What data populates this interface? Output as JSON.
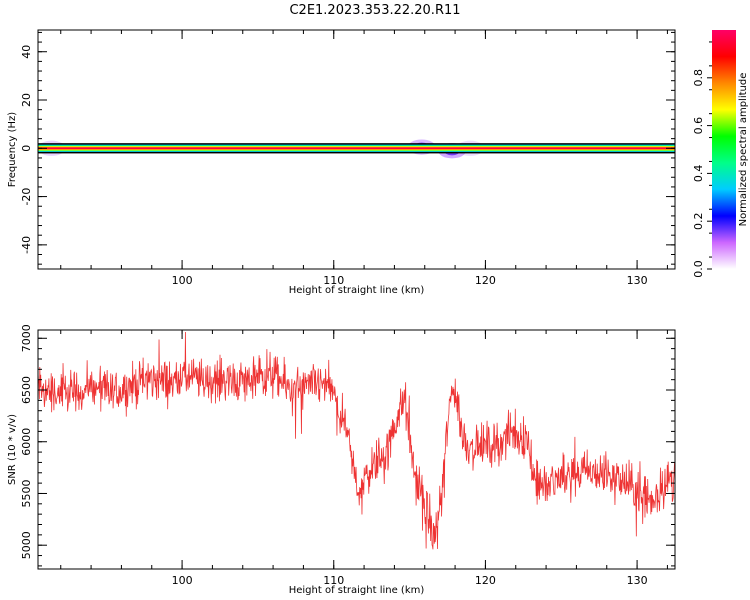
{
  "chart_data": [
    {
      "type": "heatmap",
      "title": "C2E1.2023.353.22.20.R11",
      "xlabel": "Height of straight line (km)",
      "ylabel": "Frequency (Hz)",
      "xlim": [
        90.5,
        132.5
      ],
      "ylim": [
        -50,
        49
      ],
      "xticks": [
        100,
        110,
        120,
        130
      ],
      "yticks": [
        -40,
        -20,
        0,
        20,
        40
      ],
      "band": {
        "center_hz": 0,
        "half_width_hz": 1.5,
        "blobs": [
          {
            "x": 91.4,
            "y": 0,
            "amp": 0.15
          },
          {
            "x": 115.8,
            "y": 0.5,
            "amp": 0.25
          },
          {
            "x": 117.8,
            "y": -1,
            "amp": 0.3
          },
          {
            "x": 119.0,
            "y": 0,
            "amp": 0.12
          }
        ]
      },
      "colorbar": {
        "label": "Normalized spectral amplitude",
        "range": [
          0,
          1
        ],
        "ticks": [
          "0.0",
          "0.2",
          "0.4",
          "0.6",
          "0.8"
        ],
        "colors": [
          "#ffffff",
          "#cc66ff",
          "#0000ff",
          "#00ccff",
          "#00ff88",
          "#00ff00",
          "#ffff00",
          "#ff8800",
          "#ff0000",
          "#ff0066"
        ]
      }
    },
    {
      "type": "line",
      "title": "",
      "xlabel": "Height of straight line (km)",
      "ylabel": "SNR (10 * v/v)",
      "xlim": [
        90.5,
        132.5
      ],
      "ylim": [
        4770,
        7080
      ],
      "xticks": [
        100,
        110,
        120,
        130
      ],
      "yticks": [
        5000,
        5500,
        6000,
        6500,
        7000
      ],
      "color": "#ee3333",
      "profile": [
        [
          90.5,
          6520
        ],
        [
          92,
          6450
        ],
        [
          93,
          6480
        ],
        [
          94,
          6520
        ],
        [
          95,
          6480
        ],
        [
          96,
          6500
        ],
        [
          97,
          6560
        ],
        [
          98,
          6600
        ],
        [
          99,
          6580
        ],
        [
          100,
          6640
        ],
        [
          101,
          6600
        ],
        [
          102,
          6580
        ],
        [
          103,
          6620
        ],
        [
          104,
          6580
        ],
        [
          105,
          6610
        ],
        [
          106,
          6640
        ],
        [
          107,
          6520
        ],
        [
          108,
          6500
        ],
        [
          109,
          6560
        ],
        [
          109.8,
          6520
        ],
        [
          110.6,
          6200
        ],
        [
          111.2,
          5800
        ],
        [
          111.7,
          5520
        ],
        [
          112.2,
          5700
        ],
        [
          113,
          5850
        ],
        [
          113.6,
          5920
        ],
        [
          114.2,
          6250
        ],
        [
          114.7,
          6400
        ],
        [
          115.3,
          5700
        ],
        [
          116,
          5400
        ],
        [
          116.6,
          5050
        ],
        [
          117.1,
          5450
        ],
        [
          117.5,
          6200
        ],
        [
          117.9,
          6550
        ],
        [
          118.5,
          6050
        ],
        [
          119,
          5950
        ],
        [
          120,
          5960
        ],
        [
          121,
          6010
        ],
        [
          122,
          6090
        ],
        [
          122.8,
          6020
        ],
        [
          123.3,
          5600
        ],
        [
          124,
          5570
        ],
        [
          125,
          5650
        ],
        [
          126,
          5720
        ],
        [
          127,
          5700
        ],
        [
          128,
          5680
        ],
        [
          129,
          5620
        ],
        [
          130,
          5530
        ],
        [
          131,
          5420
        ],
        [
          131.8,
          5600
        ],
        [
          132.5,
          5650
        ]
      ],
      "noise": {
        "amplitude": 230,
        "seed": 12345,
        "samples": 1400
      }
    }
  ]
}
